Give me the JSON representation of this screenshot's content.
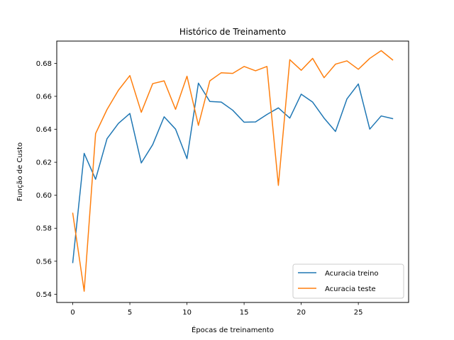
{
  "chart_data": {
    "type": "line",
    "title": "Histórico de Treinamento",
    "xlabel": "Épocas de treinamento",
    "ylabel": "Função de Custo",
    "xlim": [
      -1.4,
      29.4
    ],
    "ylim": [
      0.535,
      0.6935
    ],
    "xticks": [
      0,
      5,
      10,
      15,
      20,
      25
    ],
    "yticks": [
      0.54,
      0.56,
      0.58,
      0.6,
      0.62,
      0.64,
      0.66,
      0.68
    ],
    "ytick_labels": [
      "0.54",
      "0.56",
      "0.58",
      "0.60",
      "0.62",
      "0.64",
      "0.66",
      "0.68"
    ],
    "grid": false,
    "legend_position": "lower right",
    "x": [
      0,
      1,
      2,
      3,
      4,
      5,
      6,
      7,
      8,
      9,
      10,
      11,
      12,
      13,
      14,
      15,
      16,
      17,
      18,
      19,
      20,
      21,
      22,
      23,
      24,
      25,
      26,
      27,
      28
    ],
    "series": [
      {
        "name": "Acuracia treino",
        "color": "#1f77b4",
        "values": [
          0.5592,
          0.6254,
          0.6097,
          0.6343,
          0.6436,
          0.6496,
          0.6196,
          0.6307,
          0.6476,
          0.6401,
          0.6222,
          0.668,
          0.6569,
          0.6565,
          0.6516,
          0.6443,
          0.6445,
          0.649,
          0.653,
          0.6468,
          0.6613,
          0.6565,
          0.6468,
          0.6387,
          0.6584,
          0.6675,
          0.6401,
          0.6481,
          0.6465
        ]
      },
      {
        "name": "Acuracia teste",
        "color": "#ff7f0e",
        "values": [
          0.5891,
          0.5418,
          0.6374,
          0.652,
          0.6637,
          0.6726,
          0.6503,
          0.6677,
          0.6694,
          0.6521,
          0.6722,
          0.6424,
          0.6694,
          0.6743,
          0.6739,
          0.6781,
          0.6755,
          0.6781,
          0.606,
          0.6822,
          0.6758,
          0.683,
          0.6713,
          0.6795,
          0.6815,
          0.6764,
          0.683,
          0.6877,
          0.6821
        ]
      }
    ]
  }
}
